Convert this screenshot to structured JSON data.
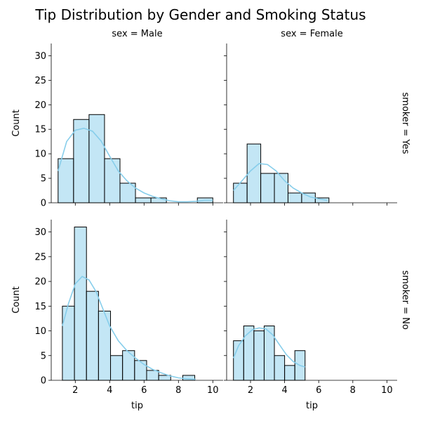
{
  "chart_data": {
    "type": "facet-histogram",
    "title": "Tip Distribution by Gender and Smoking Status",
    "xlabel": "tip",
    "ylabel": "Count",
    "x_ticks": [
      2,
      4,
      6,
      8,
      10
    ],
    "y_ticks": [
      0,
      5,
      10,
      15,
      20,
      25,
      30
    ],
    "xlim": [
      0.6,
      10.6
    ],
    "ylim": [
      0,
      32.5
    ],
    "bar_color": "#87ceeb",
    "kde_color": "#87ceeb",
    "panels": [
      {
        "col_title": "sex = Male",
        "row_title": "smoker = Yes",
        "bin_edges": [
          1.0,
          1.9,
          2.8,
          3.7,
          4.6,
          5.5,
          6.4,
          7.3,
          8.2,
          9.1,
          10.0
        ],
        "counts": [
          9,
          17,
          18,
          9,
          4,
          1,
          1,
          0,
          0,
          1
        ],
        "kde": [
          [
            1.0,
            6.5
          ],
          [
            1.5,
            12.5
          ],
          [
            2.0,
            14.8
          ],
          [
            2.5,
            15.2
          ],
          [
            3.0,
            14.6
          ],
          [
            3.5,
            12.6
          ],
          [
            4.0,
            9.5
          ],
          [
            4.5,
            6.5
          ],
          [
            5.0,
            4.5
          ],
          [
            5.5,
            3.0
          ],
          [
            6.0,
            2.0
          ],
          [
            6.5,
            1.3
          ],
          [
            7.0,
            0.8
          ],
          [
            7.5,
            0.4
          ],
          [
            8.0,
            0.2
          ],
          [
            8.5,
            0.2
          ],
          [
            9.0,
            0.3
          ],
          [
            9.5,
            0.5
          ],
          [
            10.0,
            0.5
          ]
        ]
      },
      {
        "col_title": "sex = Female",
        "row_title": "",
        "bin_edges": [
          1.0,
          1.8,
          2.6,
          3.4,
          4.2,
          5.0,
          5.8,
          6.6
        ],
        "counts": [
          4,
          12,
          6,
          6,
          2,
          2,
          1
        ],
        "kde": [
          [
            1.0,
            2.5
          ],
          [
            1.5,
            4.5
          ],
          [
            2.0,
            6.5
          ],
          [
            2.5,
            8.0
          ],
          [
            3.0,
            7.8
          ],
          [
            3.5,
            6.5
          ],
          [
            4.0,
            4.5
          ],
          [
            4.5,
            3.0
          ],
          [
            5.0,
            2.0
          ],
          [
            5.5,
            1.2
          ],
          [
            6.0,
            0.8
          ],
          [
            6.5,
            0.5
          ]
        ]
      },
      {
        "col_title": "",
        "row_title": "smoker = No",
        "bin_edges": [
          1.25,
          1.95,
          2.65,
          3.35,
          4.05,
          4.75,
          5.45,
          6.15,
          6.85,
          7.55,
          8.25,
          8.95
        ],
        "counts": [
          15,
          31,
          18,
          14,
          5,
          6,
          4,
          2,
          1,
          0,
          1
        ],
        "kde": [
          [
            1.25,
            11.0
          ],
          [
            1.6,
            15.5
          ],
          [
            2.0,
            19.5
          ],
          [
            2.4,
            21.0
          ],
          [
            2.8,
            20.3
          ],
          [
            3.2,
            18.0
          ],
          [
            3.6,
            14.5
          ],
          [
            4.0,
            11.0
          ],
          [
            4.5,
            8.0
          ],
          [
            5.0,
            6.0
          ],
          [
            5.5,
            4.5
          ],
          [
            6.0,
            3.2
          ],
          [
            6.5,
            2.2
          ],
          [
            7.0,
            1.5
          ],
          [
            7.5,
            0.9
          ],
          [
            8.0,
            0.5
          ],
          [
            8.5,
            0.3
          ],
          [
            9.0,
            0.2
          ]
        ]
      },
      {
        "col_title": "",
        "row_title": "",
        "bin_edges": [
          1.0,
          1.6,
          2.2,
          2.8,
          3.4,
          4.0,
          4.6,
          5.2
        ],
        "counts": [
          8,
          11,
          10,
          11,
          5,
          3,
          6
        ],
        "kde": [
          [
            1.0,
            4.5
          ],
          [
            1.3,
            7.0
          ],
          [
            1.7,
            9.0
          ],
          [
            2.1,
            10.2
          ],
          [
            2.5,
            10.6
          ],
          [
            2.9,
            10.4
          ],
          [
            3.3,
            9.2
          ],
          [
            3.7,
            7.2
          ],
          [
            4.1,
            5.2
          ],
          [
            4.5,
            3.8
          ],
          [
            4.9,
            3.0
          ],
          [
            5.2,
            2.7
          ]
        ]
      }
    ]
  }
}
